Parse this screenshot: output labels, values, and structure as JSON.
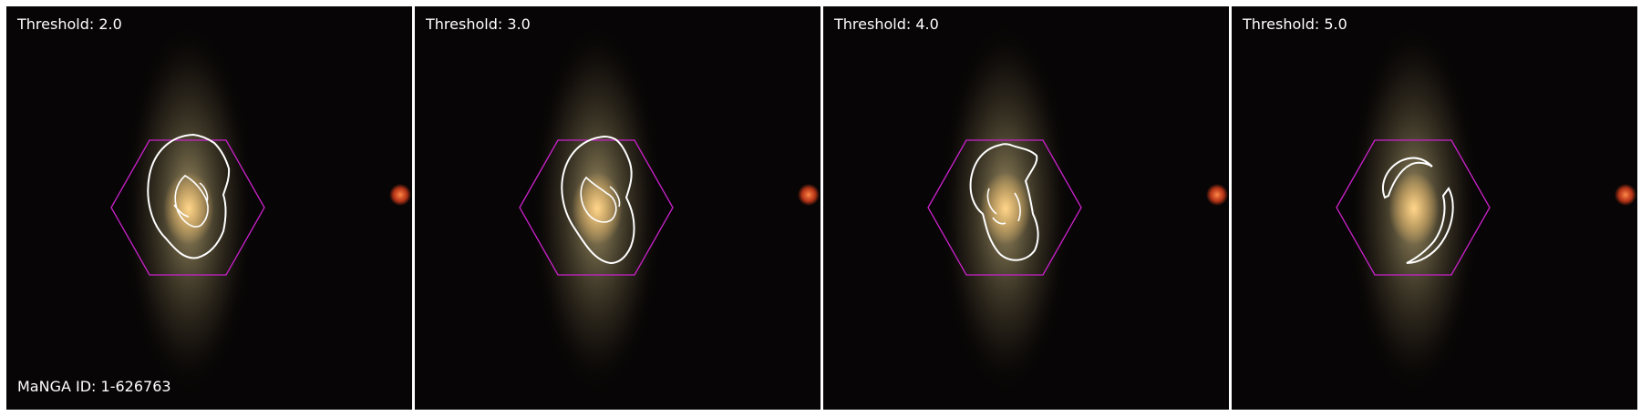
{
  "panels": [
    {
      "title": "Threshold: 2.0"
    },
    {
      "title": "Threshold: 3.0"
    },
    {
      "title": "Threshold: 4.0"
    },
    {
      "title": "Threshold: 5.0"
    }
  ],
  "manga_id": "MaNGA ID: 1-626763",
  "colors": {
    "background": "#070505",
    "hexagon": "#cc22cc",
    "contour": "#ffffff",
    "galaxy_core": "#f2c57c",
    "star": "#ff5a2a"
  }
}
